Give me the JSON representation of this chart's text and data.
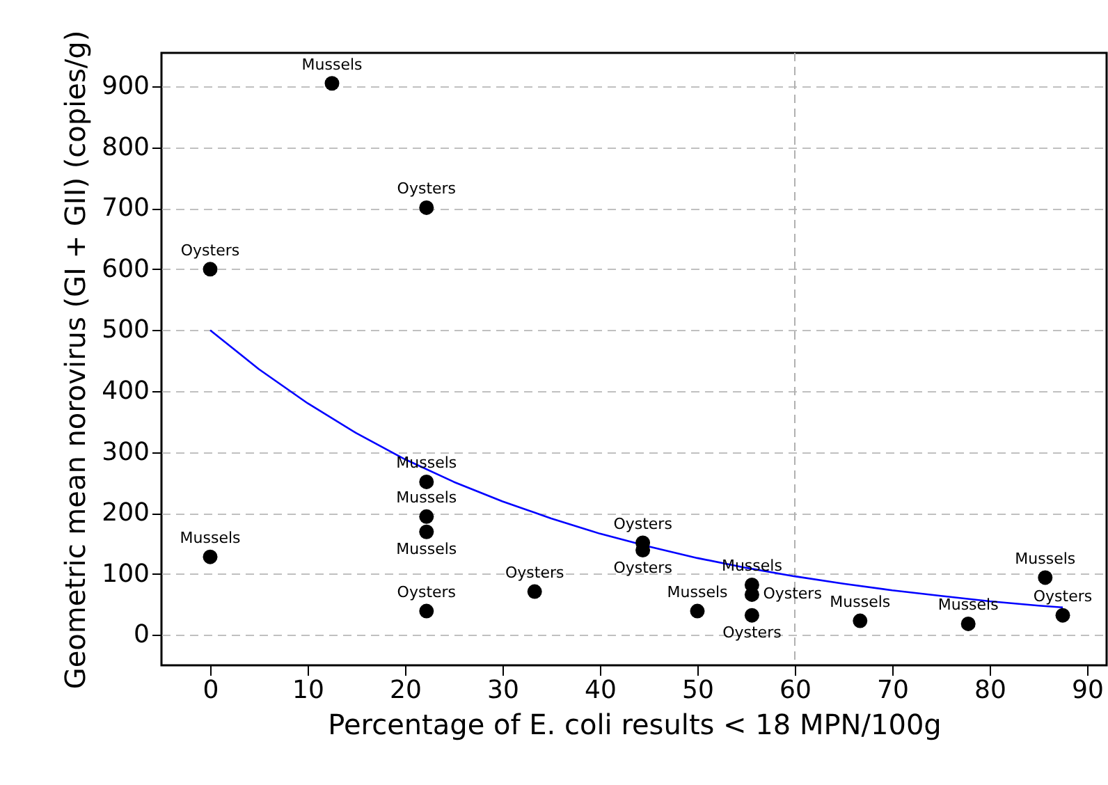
{
  "chart_data": {
    "type": "scatter",
    "xlabel": "Percentage of E. coli results < 18 MPN/100g",
    "ylabel": "Geometric mean norovirus (GI + GII) (copies/g)",
    "xlim": [
      -5,
      92
    ],
    "xticks": [
      0,
      10,
      20,
      30,
      40,
      50,
      60,
      70,
      80,
      90
    ],
    "ylim": [
      -50,
      955
    ],
    "yticks": [
      0,
      100,
      200,
      300,
      400,
      500,
      600,
      700,
      800,
      900
    ],
    "grid": "y",
    "ref_lines": [
      {
        "axis": "x",
        "value": 60,
        "color": "#b0b0b0",
        "line_style": "dashed"
      }
    ],
    "series": [
      {
        "color": "#000000",
        "marker": "circle",
        "x": [
          12.5,
          22.2,
          0,
          0,
          22.2,
          22.2,
          22.2,
          22.2,
          33.3,
          44.4,
          44.4,
          50,
          55.6,
          55.6,
          55.6,
          66.7,
          77.8,
          85.7,
          87.5
        ],
        "values": [
          905,
          701,
          600,
          128,
          251,
          194,
          169,
          39,
          71,
          151,
          139,
          39,
          82,
          66,
          32,
          23,
          18,
          94,
          32
        ]
      },
      {
        "type": "line",
        "color": "#0000ff",
        "line_style": "solid",
        "marker": "none",
        "x": [
          0,
          5,
          10,
          15,
          20,
          25,
          30,
          35,
          40,
          45,
          50,
          55,
          60,
          65,
          70,
          75,
          80,
          85,
          87.5
        ],
        "values": [
          500,
          436,
          380,
          331,
          288,
          251,
          219,
          191,
          166,
          145,
          126,
          110,
          96,
          84,
          73,
          64,
          55,
          48,
          45
        ]
      }
    ],
    "annotations": [
      {
        "text": "Mussels",
        "x": 12.5,
        "y": 905
      },
      {
        "text": "Oysters",
        "x": 22.2,
        "y": 701
      },
      {
        "text": "Oysters",
        "x": 0,
        "y": 600
      },
      {
        "text": "Mussels",
        "x": 0,
        "y": 128
      },
      {
        "text": "Mussels",
        "x": 22.2,
        "y": 251
      },
      {
        "text": "Mussels",
        "x": 22.2,
        "y": 194
      },
      {
        "text": "Mussels",
        "x": 22.2,
        "y": 169
      },
      {
        "text": "Oysters",
        "x": 22.2,
        "y": 39
      },
      {
        "text": "Oysters",
        "x": 33.3,
        "y": 71
      },
      {
        "text": "Oysters",
        "x": 44.4,
        "y": 151
      },
      {
        "text": "Oysters",
        "x": 44.4,
        "y": 139
      },
      {
        "text": "Mussels",
        "x": 50,
        "y": 39
      },
      {
        "text": "Mussels",
        "x": 55.6,
        "y": 82
      },
      {
        "text": "Oysters",
        "x": 55.6,
        "y": 66
      },
      {
        "text": "Oysters",
        "x": 55.6,
        "y": 32
      },
      {
        "text": "Mussels",
        "x": 66.7,
        "y": 23
      },
      {
        "text": "Mussels",
        "x": 77.8,
        "y": 18
      },
      {
        "text": "Mussels",
        "x": 85.7,
        "y": 94
      },
      {
        "text": "Oysters",
        "x": 87.5,
        "y": 32
      }
    ]
  }
}
